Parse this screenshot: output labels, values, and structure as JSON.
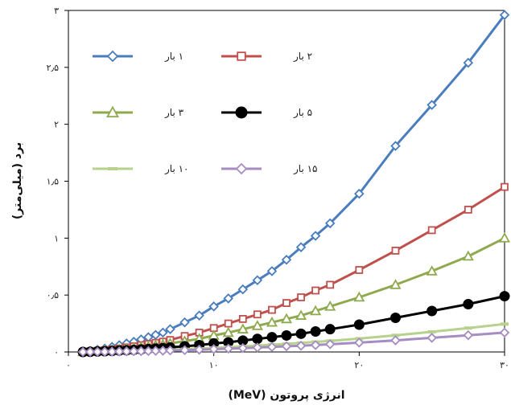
{
  "chart_data": {
    "type": "line",
    "xlabel": "انرژی پروتون (MeV)",
    "ylabel": "برد (میلی‌متر)",
    "xlim": [
      0,
      30
    ],
    "ylim": [
      0,
      3
    ],
    "x_ticks": [
      {
        "value": 0,
        "label": "۰"
      },
      {
        "value": 10,
        "label": "۱۰"
      },
      {
        "value": 20,
        "label": "۲۰"
      },
      {
        "value": 30,
        "label": "۳۰"
      }
    ],
    "y_ticks": [
      {
        "value": 0,
        "label": "۰"
      },
      {
        "value": 0.5,
        "label": "۰٫۵"
      },
      {
        "value": 1,
        "label": "۱"
      },
      {
        "value": 1.5,
        "label": "۱٫۵"
      },
      {
        "value": 2,
        "label": "۲"
      },
      {
        "value": 2.5,
        "label": "۲٫۵"
      },
      {
        "value": 3,
        "label": "۳"
      }
    ],
    "grid": false,
    "legend_position": "top-left",
    "x": [
      1,
      1.5,
      2,
      2.5,
      3,
      3.5,
      4,
      4.5,
      5,
      5.5,
      6,
      6.5,
      7,
      8,
      9,
      10,
      11,
      12,
      13,
      14,
      15,
      16,
      17,
      18,
      20,
      22.5,
      25,
      27.5,
      30
    ],
    "series": [
      {
        "name": "۱ بار",
        "color": "#4a7dbd",
        "marker": "diamond",
        "values": [
          0.0,
          0.01,
          0.02,
          0.03,
          0.045,
          0.06,
          0.075,
          0.09,
          0.11,
          0.13,
          0.15,
          0.17,
          0.2,
          0.26,
          0.32,
          0.4,
          0.47,
          0.55,
          0.63,
          0.71,
          0.81,
          0.92,
          1.02,
          1.13,
          1.39,
          1.81,
          2.17,
          2.54,
          2.96
        ]
      },
      {
        "name": "۲ بار",
        "color": "#c0504d",
        "marker": "square",
        "values": [
          0.0,
          0.005,
          0.01,
          0.015,
          0.022,
          0.03,
          0.04,
          0.05,
          0.06,
          0.07,
          0.08,
          0.09,
          0.105,
          0.14,
          0.17,
          0.21,
          0.25,
          0.29,
          0.33,
          0.37,
          0.43,
          0.48,
          0.54,
          0.59,
          0.72,
          0.89,
          1.07,
          1.25,
          1.45
        ]
      },
      {
        "name": "۳ بار",
        "color": "#8faa4e",
        "marker": "triangle",
        "values": [
          0.0,
          0.004,
          0.008,
          0.012,
          0.017,
          0.023,
          0.03,
          0.036,
          0.043,
          0.05,
          0.058,
          0.065,
          0.075,
          0.095,
          0.115,
          0.145,
          0.17,
          0.2,
          0.23,
          0.26,
          0.29,
          0.32,
          0.36,
          0.4,
          0.48,
          0.59,
          0.71,
          0.84,
          1.0
        ]
      },
      {
        "name": "۵ بار",
        "color": "#000000",
        "marker": "circle",
        "values": [
          0.0,
          0.002,
          0.004,
          0.006,
          0.009,
          0.012,
          0.015,
          0.018,
          0.022,
          0.026,
          0.03,
          0.034,
          0.04,
          0.05,
          0.06,
          0.075,
          0.085,
          0.1,
          0.115,
          0.13,
          0.145,
          0.16,
          0.18,
          0.2,
          0.24,
          0.3,
          0.36,
          0.42,
          0.49
        ]
      },
      {
        "name": "۱۰ بار",
        "color": "#b6d28d",
        "marker": "dash",
        "values": [
          0.0,
          0.001,
          0.002,
          0.003,
          0.004,
          0.005,
          0.007,
          0.008,
          0.01,
          0.012,
          0.014,
          0.016,
          0.019,
          0.024,
          0.029,
          0.036,
          0.042,
          0.049,
          0.056,
          0.063,
          0.071,
          0.079,
          0.088,
          0.097,
          0.117,
          0.146,
          0.177,
          0.21,
          0.245
        ]
      },
      {
        "name": "۱۵ بار",
        "color": "#a58cc1",
        "marker": "diamond",
        "values": [
          0.0,
          0.001,
          0.002,
          0.002,
          0.003,
          0.004,
          0.005,
          0.006,
          0.007,
          0.008,
          0.01,
          0.011,
          0.013,
          0.016,
          0.02,
          0.025,
          0.029,
          0.034,
          0.039,
          0.044,
          0.05,
          0.055,
          0.061,
          0.068,
          0.082,
          0.102,
          0.124,
          0.147,
          0.17
        ]
      }
    ]
  }
}
